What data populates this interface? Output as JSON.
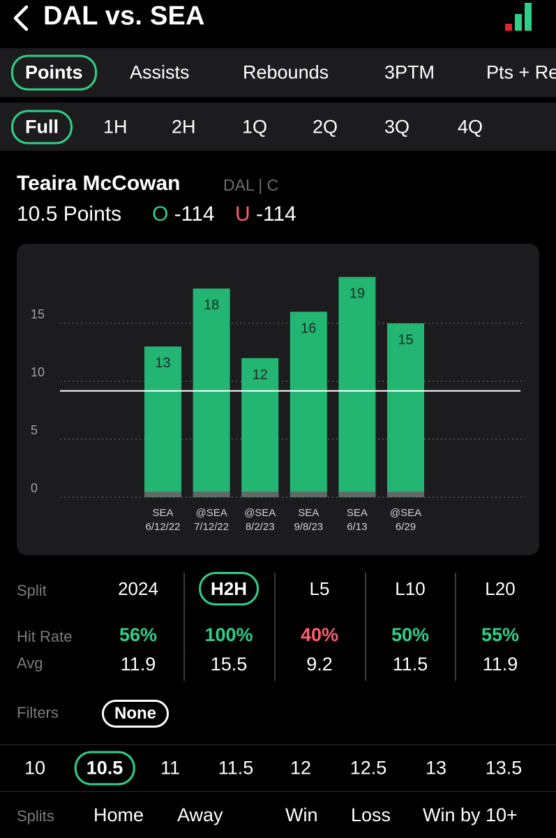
{
  "header": {
    "title": "DAL vs. SEA"
  },
  "stat_tabs": [
    {
      "label": "Points",
      "active": true
    },
    {
      "label": "Assists",
      "active": false
    },
    {
      "label": "Rebounds",
      "active": false
    },
    {
      "label": "3PTM",
      "active": false
    },
    {
      "label": "Pts + Re",
      "active": false
    }
  ],
  "period_tabs": [
    {
      "label": "Full",
      "active": true
    },
    {
      "label": "1H",
      "active": false
    },
    {
      "label": "2H",
      "active": false
    },
    {
      "label": "1Q",
      "active": false
    },
    {
      "label": "2Q",
      "active": false
    },
    {
      "label": "3Q",
      "active": false
    },
    {
      "label": "4Q",
      "active": false
    }
  ],
  "player": {
    "name": "Teaira McCowan",
    "team_pos": "DAL | C",
    "line": "10.5 Points",
    "over_letter": "O",
    "over_odds": "-114",
    "under_letter": "U",
    "under_odds": "-114"
  },
  "chart_data": {
    "type": "bar",
    "categories": [
      "SEA 6/12/22",
      "@SEA 7/12/22",
      "@SEA 8/2/23",
      "SEA 9/8/23",
      "SEA 6/13",
      "@SEA 6/29"
    ],
    "cat_top": [
      "SEA",
      "@SEA",
      "@SEA",
      "SEA",
      "SEA",
      "@SEA"
    ],
    "cat_bottom": [
      "6/12/22",
      "7/12/22",
      "8/2/23",
      "9/8/23",
      "6/13",
      "6/29"
    ],
    "values": [
      13,
      18,
      12,
      16,
      19,
      15
    ],
    "yticks": [
      0,
      5,
      10,
      15
    ],
    "ylim": [
      0,
      21
    ],
    "reference_line": 10.5,
    "bar_color": "#23b673",
    "grid": "dotted"
  },
  "splits_table": {
    "row_labels": {
      "split": "Split",
      "hit_rate": "Hit Rate",
      "avg": "Avg"
    },
    "columns": [
      {
        "label": "2024",
        "hit_rate": "56%",
        "avg": "11.9",
        "status": "green",
        "active": false
      },
      {
        "label": "H2H",
        "hit_rate": "100%",
        "avg": "15.5",
        "status": "green",
        "active": true
      },
      {
        "label": "L5",
        "hit_rate": "40%",
        "avg": "9.2",
        "status": "red",
        "active": false
      },
      {
        "label": "L10",
        "hit_rate": "50%",
        "avg": "11.5",
        "status": "green",
        "active": false
      },
      {
        "label": "L20",
        "hit_rate": "55%",
        "avg": "11.9",
        "status": "green",
        "active": false
      }
    ]
  },
  "filters": {
    "label": "Filters",
    "value": "None"
  },
  "line_values": [
    {
      "label": "10",
      "active": false
    },
    {
      "label": "10.5",
      "active": true
    },
    {
      "label": "11",
      "active": false
    },
    {
      "label": "11.5",
      "active": false
    },
    {
      "label": "12",
      "active": false
    },
    {
      "label": "12.5",
      "active": false
    },
    {
      "label": "13",
      "active": false
    },
    {
      "label": "13.5",
      "active": false
    }
  ],
  "splits": {
    "label": "Splits",
    "items": [
      "Home",
      "Away",
      "Win",
      "Loss",
      "Win by 10+"
    ]
  },
  "colors": {
    "accent": "#2ed087",
    "negative": "#ff5f6d",
    "panel": "#1c1c1e",
    "signal_red": "#e0262c"
  },
  "icons": {
    "back": "chevron-left-icon",
    "signal": "signal-bars-icon"
  }
}
